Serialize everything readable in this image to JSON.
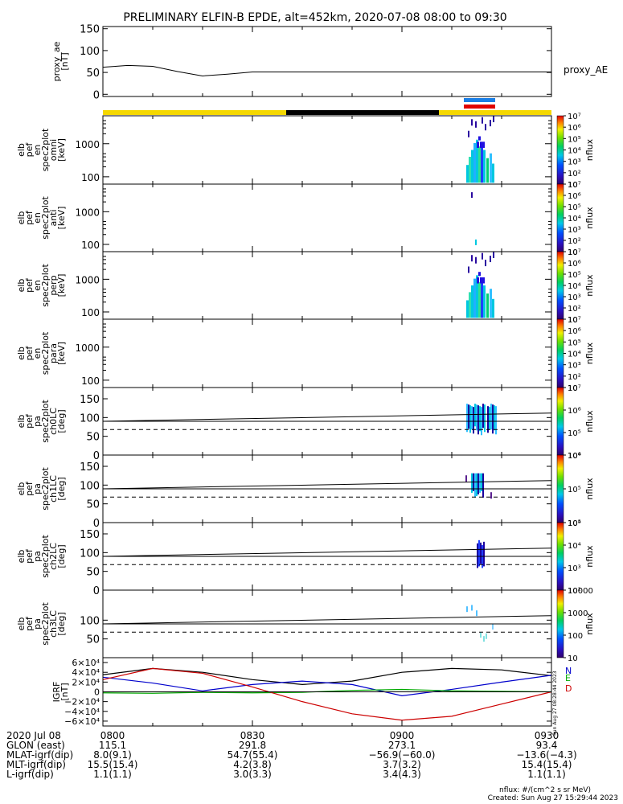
{
  "title": "PRELIMINARY ELFIN-B EPDE, alt=452km, 2020-07-08 08:00 to 09:30",
  "chart_data": [
    {
      "type": "line",
      "id": "proxy_ae",
      "ylabel_lines": [
        "proxy_ae",
        "[nT]"
      ],
      "yticks": [
        0,
        50,
        100,
        150
      ],
      "ylim": [
        -5,
        155
      ],
      "series": [
        {
          "name": "proxy_AE",
          "color": "#000000",
          "x_min": [
            0,
            5,
            10,
            15,
            20,
            25,
            30,
            35,
            40,
            45,
            50,
            55,
            60,
            65,
            70,
            75,
            80,
            85,
            90
          ],
          "values": [
            62,
            66,
            64,
            52,
            42,
            46,
            51,
            51,
            51,
            51,
            51,
            51,
            51,
            51,
            51,
            51,
            51,
            51,
            51
          ]
        }
      ]
    },
    {
      "type": "heatmap",
      "id": "en_spec_omni",
      "ylabel_lines": [
        "elb",
        "pef",
        "en",
        "spec2plot",
        "omni",
        "[keV]"
      ],
      "yticks": [
        "100",
        "1000"
      ],
      "yscale": "log",
      "ylim": [
        60,
        7000
      ],
      "colorbar": {
        "label": "nflux",
        "ticks": [
          "10",
          "10²",
          "10³",
          "10⁴",
          "10⁵",
          "10⁶",
          "10⁷"
        ]
      }
    },
    {
      "type": "heatmap",
      "id": "en_spec_anti",
      "ylabel_lines": [
        "elb",
        "pef",
        "en",
        "spec2plot",
        "anti",
        "[keV]"
      ],
      "yticks": [
        "100",
        "1000"
      ],
      "yscale": "log",
      "ylim": [
        60,
        7000
      ],
      "colorbar": {
        "label": "nflux",
        "ticks": [
          "10",
          "10²",
          "10³",
          "10⁴",
          "10⁵",
          "10⁶",
          "10⁷"
        ]
      }
    },
    {
      "type": "heatmap",
      "id": "en_spec_perp",
      "ylabel_lines": [
        "elb",
        "pef",
        "en",
        "spec2plot",
        "perp",
        "[keV]"
      ],
      "yticks": [
        "100",
        "1000"
      ],
      "yscale": "log",
      "ylim": [
        60,
        7000
      ],
      "colorbar": {
        "label": "nflux",
        "ticks": [
          "10",
          "10²",
          "10³",
          "10⁴",
          "10⁵",
          "10⁶",
          "10⁷"
        ]
      }
    },
    {
      "type": "heatmap",
      "id": "en_spec_para",
      "ylabel_lines": [
        "elb",
        "pef",
        "en",
        "spec2plot",
        "para",
        "[keV]"
      ],
      "yticks": [
        "100",
        "1000"
      ],
      "yscale": "log",
      "ylim": [
        60,
        7000
      ],
      "colorbar": {
        "label": "nflux",
        "ticks": [
          "10",
          "10²",
          "10³",
          "10⁴",
          "10⁵",
          "10⁶",
          "10⁷"
        ]
      }
    },
    {
      "type": "heatmap",
      "id": "pa_spec_ch0LC",
      "ylabel_lines": [
        "elb",
        "pef",
        "pa",
        "spec2plot",
        "ch0LC",
        "[deg]"
      ],
      "yticks": [
        0,
        50,
        100,
        150
      ],
      "ylim": [
        0,
        180
      ],
      "colorbar": {
        "label": "nflux",
        "ticks": [
          "10⁴",
          "10⁵",
          "10⁶",
          "10⁷"
        ]
      }
    },
    {
      "type": "heatmap",
      "id": "pa_spec_ch1LC",
      "ylabel_lines": [
        "elb",
        "pef",
        "pa",
        "spec2plot",
        "ch1LC",
        "[deg]"
      ],
      "yticks": [
        0,
        50,
        100,
        150
      ],
      "ylim": [
        0,
        180
      ],
      "colorbar": {
        "label": "nflux",
        "ticks": [
          "10⁴",
          "10⁵",
          "10⁶"
        ]
      }
    },
    {
      "type": "heatmap",
      "id": "pa_spec_ch2LC",
      "ylabel_lines": [
        "elb",
        "pef",
        "pa",
        "spec2plot",
        "ch2LC",
        "[deg]"
      ],
      "yticks": [
        0,
        50,
        100,
        150
      ],
      "ylim": [
        0,
        180
      ],
      "colorbar": {
        "label": "nflux",
        "ticks": [
          "10²",
          "10³",
          "10⁴",
          "10⁵"
        ]
      }
    },
    {
      "type": "heatmap",
      "id": "pa_spec_ch3LC",
      "ylabel_lines": [
        "elb",
        "pef",
        "pa",
        "spec2plot",
        "ch3LC",
        "[deg]"
      ],
      "yticks": [
        50,
        100
      ],
      "ylim": [
        0,
        180
      ],
      "colorbar": {
        "label": "nflux",
        "ticks": [
          "10",
          "100",
          "1000",
          "10000"
        ]
      }
    },
    {
      "type": "line",
      "id": "igrf",
      "ylabel_lines": [
        "IGRF",
        "[nT]"
      ],
      "yticks": [
        "−6×10⁴",
        "−4×10⁴",
        "−2×10⁴",
        "0",
        "2×10⁴",
        "4×10⁴",
        "6×10⁴"
      ],
      "ytick_values": [
        -60000,
        -40000,
        -20000,
        0,
        20000,
        40000,
        60000
      ],
      "ylim": [
        -70000,
        70000
      ],
      "legend": [
        {
          "label": "N",
          "color": "#0000cc"
        },
        {
          "label": "E",
          "color": "#00aa00"
        },
        {
          "label": "D",
          "color": "#cc0000"
        }
      ],
      "x_min": [
        0,
        10,
        20,
        30,
        40,
        50,
        60,
        70,
        80,
        90
      ],
      "series": [
        {
          "color": "#000000",
          "values": [
            35000,
            48000,
            40000,
            25000,
            15000,
            22000,
            40000,
            48000,
            45000,
            33000
          ]
        },
        {
          "color": "#0000cc",
          "values": [
            30000,
            18000,
            2000,
            15000,
            22000,
            15000,
            -8000,
            5000,
            20000,
            34000
          ]
        },
        {
          "color": "#00aa00",
          "values": [
            -2000,
            -3000,
            -1000,
            -2000,
            -1000,
            3000,
            5000,
            2000,
            1000,
            0
          ]
        },
        {
          "color": "#cc0000",
          "values": [
            25000,
            48000,
            38000,
            10000,
            -20000,
            -45000,
            -58000,
            -50000,
            -25000,
            0
          ]
        }
      ]
    }
  ],
  "xaxis": {
    "ticks": [
      "0800",
      "0830",
      "0900",
      "0930"
    ],
    "rows": [
      {
        "label": "2020 Jul 08",
        "values": [
          "0800",
          "0830",
          "0900",
          "0930"
        ]
      },
      {
        "label": "GLON (east)",
        "values": [
          "115.1",
          "291.8",
          "273.1",
          "93.4"
        ]
      },
      {
        "label": "MLAT-igrf(dip)",
        "values": [
          "8.0(9.1)",
          "54.7(55.4)",
          "−56.9(−60.0)",
          "−13.6(−4.3)"
        ]
      },
      {
        "label": "MLT-igrf(dip)",
        "values": [
          "15.5(15.4)",
          "4.2(3.8)",
          "3.7(3.2)",
          "15.4(15.4)"
        ]
      },
      {
        "label": "L-igrf(dip)",
        "values": [
          "1.1(1.1)",
          "3.0(3.3)",
          "3.4(4.3)",
          "1.1(1.1)"
        ]
      }
    ]
  },
  "credits": {
    "units": "nflux: #/(cm^2 s sr MeV)",
    "created": "Created: Sun Aug 27 15:29:44 2023",
    "stamp": "Sun Aug 27 08:28:44 2023"
  }
}
